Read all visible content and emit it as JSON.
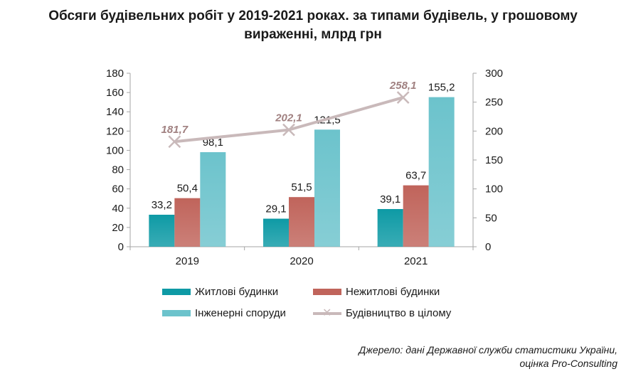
{
  "title_line1": "Обсяги будівельних робіт у 2019-2021 роках. за типами будівель, у грошовому",
  "title_line2": "вираженні, млрд грн",
  "source_line1": "Джерело: дані Державної служби статистики України,",
  "source_line2": "оцінка Pro-Consulting",
  "colors": {
    "residential": "#0e9aa5",
    "nonresidential": "#c0645b",
    "engineering": "#6cc3cc",
    "total": "#c9b9ba",
    "total_label": "#a08080"
  },
  "chart_data": {
    "type": "bar",
    "categories": [
      "2019",
      "2020",
      "2021"
    ],
    "series": [
      {
        "name": "Житлові будинки",
        "values": [
          33.2,
          29.1,
          39.1
        ],
        "labels": [
          "33,2",
          "29,1",
          "39,1"
        ],
        "axis": "left",
        "kind": "bar"
      },
      {
        "name": "Нежитлові будинки",
        "values": [
          50.4,
          51.5,
          63.7
        ],
        "labels": [
          "50,4",
          "51,5",
          "63,7"
        ],
        "axis": "left",
        "kind": "bar"
      },
      {
        "name": "Інженерні споруди",
        "values": [
          98.1,
          121.5,
          155.2
        ],
        "labels": [
          "98,1",
          "121,5",
          "155,2"
        ],
        "axis": "left",
        "kind": "bar"
      },
      {
        "name": "Будівництво в цілому",
        "values": [
          181.7,
          202.1,
          258.1
        ],
        "labels": [
          "181,7",
          "202,1",
          "258,1"
        ],
        "axis": "right",
        "kind": "line"
      }
    ],
    "ylim_left": [
      0,
      180
    ],
    "yticks_left": [
      "0",
      "20",
      "40",
      "60",
      "80",
      "100",
      "120",
      "140",
      "160",
      "180"
    ],
    "ylim_right": [
      0,
      300
    ],
    "yticks_right": [
      "0",
      "50",
      "100",
      "150",
      "200",
      "250",
      "300"
    ],
    "grid": false,
    "legend_position": "bottom"
  }
}
